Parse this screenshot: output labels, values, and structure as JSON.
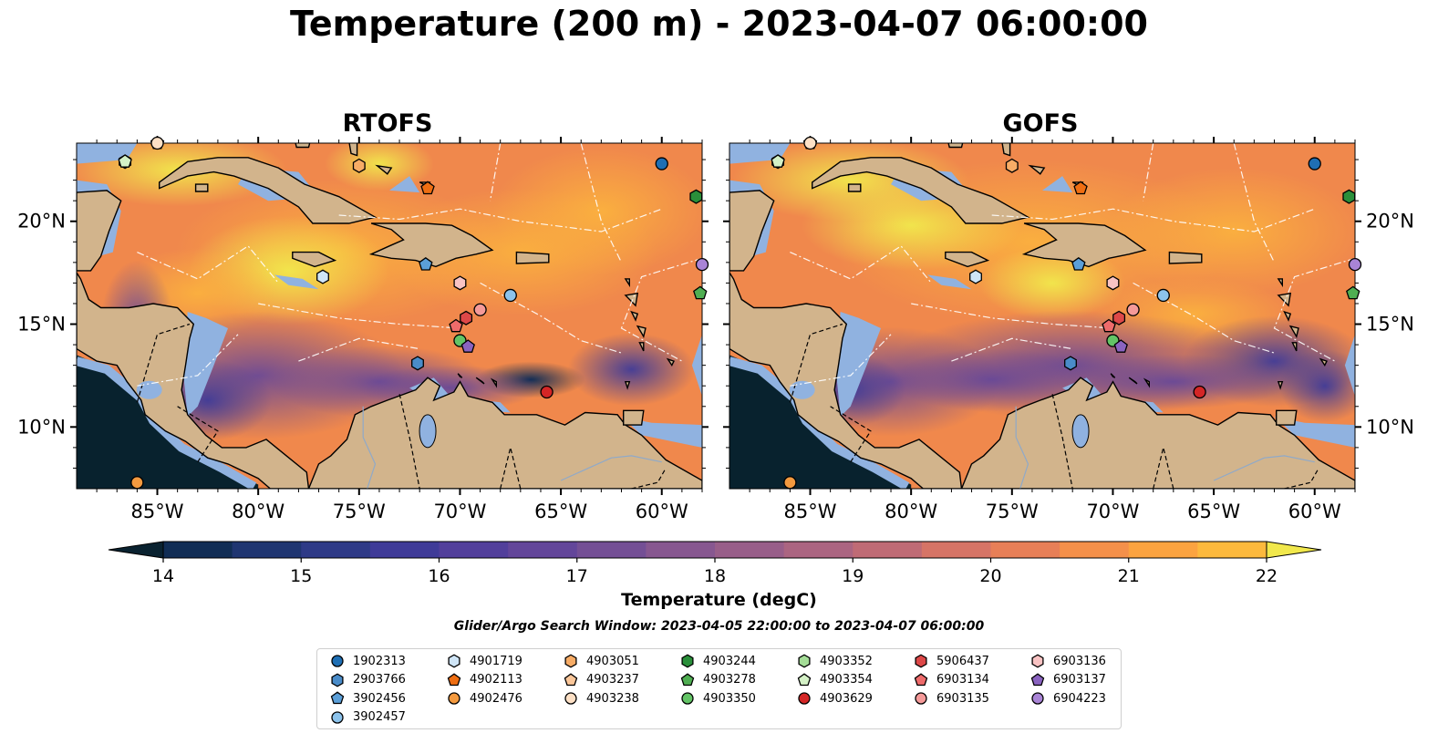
{
  "title": "Temperature (200 m) - 2023-04-07 06:00:00",
  "panels": [
    {
      "title": "RTOFS"
    },
    {
      "title": "GOFS"
    }
  ],
  "longitude_ticks": [
    "85°W",
    "80°W",
    "75°W",
    "70°W",
    "65°W",
    "60°W"
  ],
  "latitude_ticks": [
    "20°N",
    "15°N",
    "10°N"
  ],
  "colorbar": {
    "label": "Temperature (degC)",
    "ticks": [
      "14",
      "15",
      "16",
      "17",
      "18",
      "19",
      "20",
      "21",
      "22"
    ],
    "colors": [
      "#0a2230",
      "#112d55",
      "#1f3571",
      "#2e3a87",
      "#3f3b98",
      "#523f9b",
      "#63469a",
      "#744f95",
      "#875790",
      "#985e89",
      "#ab6581",
      "#bf6b75",
      "#d67466",
      "#e77f57",
      "#f4904a",
      "#fba340",
      "#fcb93d",
      "#fbd041",
      "#f1e84c"
    ],
    "extend": "both"
  },
  "search_window": "Glider/Argo Search Window: 2023-04-05 22:00:00 to 2023-04-07 06:00:00",
  "colors": {
    "land": "#d2b48c",
    "shallow_water": "#90b2e0",
    "deep_offshore": "#08222e"
  },
  "legend": {
    "items": [
      {
        "id": "1902313",
        "shape": "circle",
        "color": "#1f6fb4"
      },
      {
        "id": "2903766",
        "shape": "hexagon",
        "color": "#4a8cc9"
      },
      {
        "id": "3902456",
        "shape": "pentagon",
        "color": "#5b9fd8"
      },
      {
        "id": "3902457",
        "shape": "circle",
        "color": "#8cc3ec"
      },
      {
        "id": "4901719",
        "shape": "hexagon",
        "color": "#cfe5f7"
      },
      {
        "id": "4902113",
        "shape": "pentagon",
        "color": "#ef6e12"
      },
      {
        "id": "4902476",
        "shape": "circle",
        "color": "#f49a3f"
      },
      {
        "id": "4903051",
        "shape": "hexagon",
        "color": "#f7ac66"
      },
      {
        "id": "4903237",
        "shape": "pentagon",
        "color": "#fbc79a"
      },
      {
        "id": "4903238",
        "shape": "circle",
        "color": "#fde0c5"
      },
      {
        "id": "4903244",
        "shape": "hexagon",
        "color": "#2a8f3a"
      },
      {
        "id": "4903278",
        "shape": "pentagon",
        "color": "#4fae52"
      },
      {
        "id": "4903350",
        "shape": "circle",
        "color": "#63c466"
      },
      {
        "id": "4903352",
        "shape": "hexagon",
        "color": "#a4dd97"
      },
      {
        "id": "4903354",
        "shape": "pentagon",
        "color": "#d4f1c6"
      },
      {
        "id": "4903629",
        "shape": "circle",
        "color": "#d42626"
      },
      {
        "id": "5906437",
        "shape": "hexagon",
        "color": "#dd4848"
      },
      {
        "id": "6903134",
        "shape": "pentagon",
        "color": "#ee6b6b"
      },
      {
        "id": "6903135",
        "shape": "circle",
        "color": "#f59a99"
      },
      {
        "id": "6903136",
        "shape": "hexagon",
        "color": "#f9c3c3"
      },
      {
        "id": "6903137",
        "shape": "pentagon",
        "color": "#8a63c0"
      },
      {
        "id": "6904223",
        "shape": "circle",
        "color": "#a984d6"
      }
    ]
  },
  "floats": [
    {
      "id": "1902313",
      "lon": -60.0,
      "lat": 22.8
    },
    {
      "id": "2903766",
      "lon": -72.1,
      "lat": 13.1
    },
    {
      "id": "3902456",
      "lon": -71.7,
      "lat": 17.9
    },
    {
      "id": "3902457",
      "lon": -67.5,
      "lat": 16.4
    },
    {
      "id": "4901719",
      "lon": -76.8,
      "lat": 17.3
    },
    {
      "id": "4902113",
      "lon": -71.6,
      "lat": 21.6
    },
    {
      "id": "4902476",
      "lon": -86.0,
      "lat": 7.3
    },
    {
      "id": "4903051",
      "lon": -75.0,
      "lat": 22.7
    },
    {
      "id": "4903237",
      "lon": -85.0,
      "lat": 23.8
    },
    {
      "id": "4903238",
      "lon": -85.0,
      "lat": 23.8
    },
    {
      "id": "4903244",
      "lon": -58.3,
      "lat": 21.2
    },
    {
      "id": "4903278",
      "lon": -58.1,
      "lat": 16.5
    },
    {
      "id": "4903350",
      "lon": -70.0,
      "lat": 14.2
    },
    {
      "id": "4903352",
      "lon": -86.6,
      "lat": 22.9
    },
    {
      "id": "4903354",
      "lon": -86.6,
      "lat": 22.9
    },
    {
      "id": "4903629",
      "lon": -65.7,
      "lat": 11.7
    },
    {
      "id": "5906437",
      "lon": -69.7,
      "lat": 15.3
    },
    {
      "id": "6903134",
      "lon": -70.2,
      "lat": 14.9
    },
    {
      "id": "6903135",
      "lon": -69.0,
      "lat": 15.7
    },
    {
      "id": "6903136",
      "lon": -70.0,
      "lat": 17.0
    },
    {
      "id": "6903137",
      "lon": -69.6,
      "lat": 13.9
    },
    {
      "id": "6904223",
      "lon": -58.0,
      "lat": 17.9
    }
  ]
}
